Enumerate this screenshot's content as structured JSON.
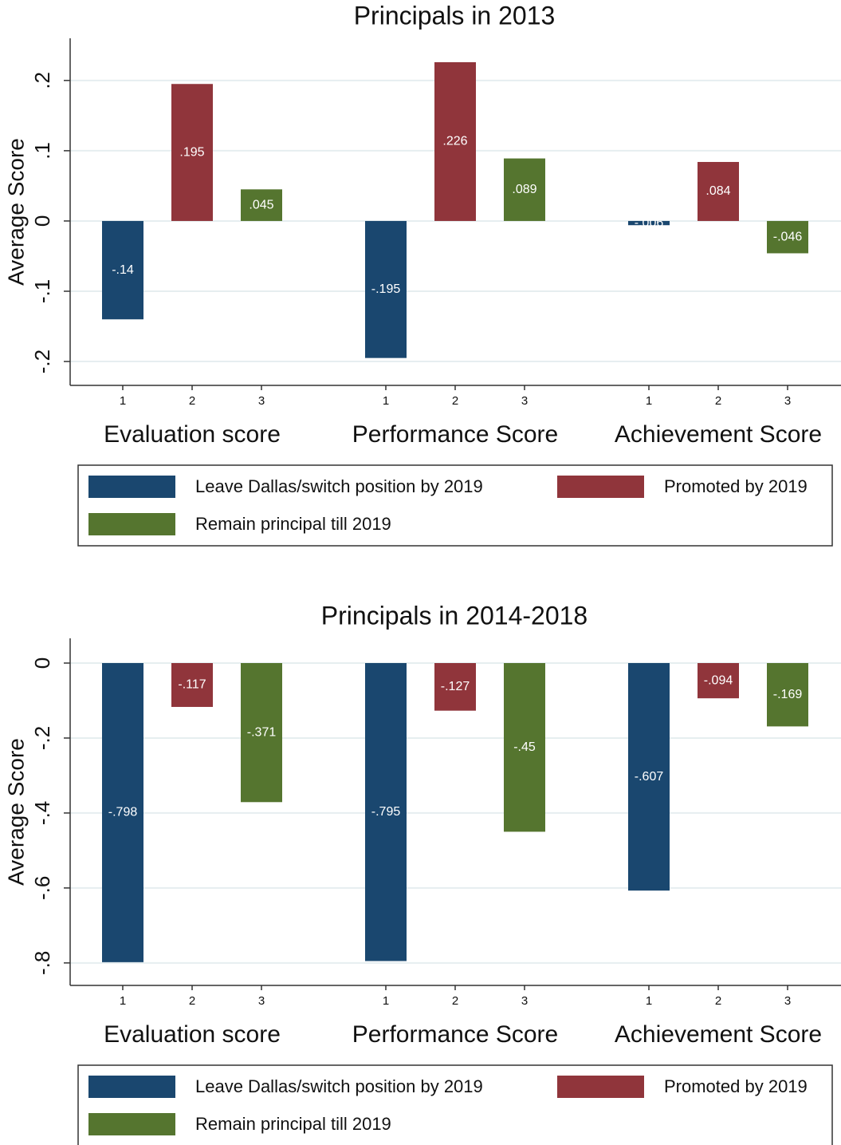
{
  "chart_data": [
    {
      "type": "bar",
      "title": "Principals in 2013",
      "ylabel": "Average Score",
      "categories": [
        "Evaluation score",
        "Performance Score",
        "Achievement Score"
      ],
      "subcategories": [
        "1",
        "2",
        "3"
      ],
      "series": [
        {
          "name": "Leave Dallas/switch position by 2019",
          "color": "#1a476f",
          "values": [
            -0.14,
            -0.195,
            -0.006
          ],
          "value_labels": [
            "-.14",
            "-.195",
            "-.006"
          ]
        },
        {
          "name": "Promoted by 2019",
          "color": "#90353b",
          "values": [
            0.195,
            0.226,
            0.084
          ],
          "value_labels": [
            ".195",
            ".226",
            ".084"
          ]
        },
        {
          "name": "Remain principal till 2019",
          "color": "#55752f",
          "values": [
            0.045,
            0.089,
            -0.046
          ],
          "value_labels": [
            ".045",
            ".089",
            "-.046"
          ]
        }
      ],
      "ylim": [
        -0.234,
        0.26
      ],
      "yticks": [
        {
          "value": -0.2,
          "label": "-.2"
        },
        {
          "value": -0.1,
          "label": "-.1"
        },
        0,
        {
          "value": 0.1,
          "label": ".1"
        },
        {
          "value": 0.2,
          "label": ".2"
        }
      ],
      "grid": true,
      "legend": "bottom"
    },
    {
      "type": "bar",
      "title": "Principals in 2014-2018",
      "ylabel": "Average Score",
      "categories": [
        "Evaluation score",
        "Performance Score",
        "Achievement Score"
      ],
      "subcategories": [
        "1",
        "2",
        "3"
      ],
      "series": [
        {
          "name": "Leave Dallas/switch position by 2019",
          "color": "#1a476f",
          "values": [
            -0.798,
            -0.795,
            -0.607
          ],
          "value_labels": [
            "-.798",
            "-.795",
            "-.607"
          ]
        },
        {
          "name": "Promoted by 2019",
          "color": "#90353b",
          "values": [
            -0.117,
            -0.127,
            -0.094
          ],
          "value_labels": [
            "-.117",
            "-.127",
            "-.094"
          ]
        },
        {
          "name": "Remain principal till 2019",
          "color": "#55752f",
          "values": [
            -0.371,
            -0.45,
            -0.169
          ],
          "value_labels": [
            "-.371",
            "-.45",
            "-.169"
          ]
        }
      ],
      "ylim": [
        -0.86,
        0.066
      ],
      "yticks": [
        {
          "value": -0.8,
          "label": "-.8"
        },
        {
          "value": -0.6,
          "label": "-.6"
        },
        {
          "value": -0.4,
          "label": "-.4"
        },
        {
          "value": -0.2,
          "label": "-.2"
        },
        0
      ],
      "grid": true,
      "legend": "bottom"
    }
  ]
}
